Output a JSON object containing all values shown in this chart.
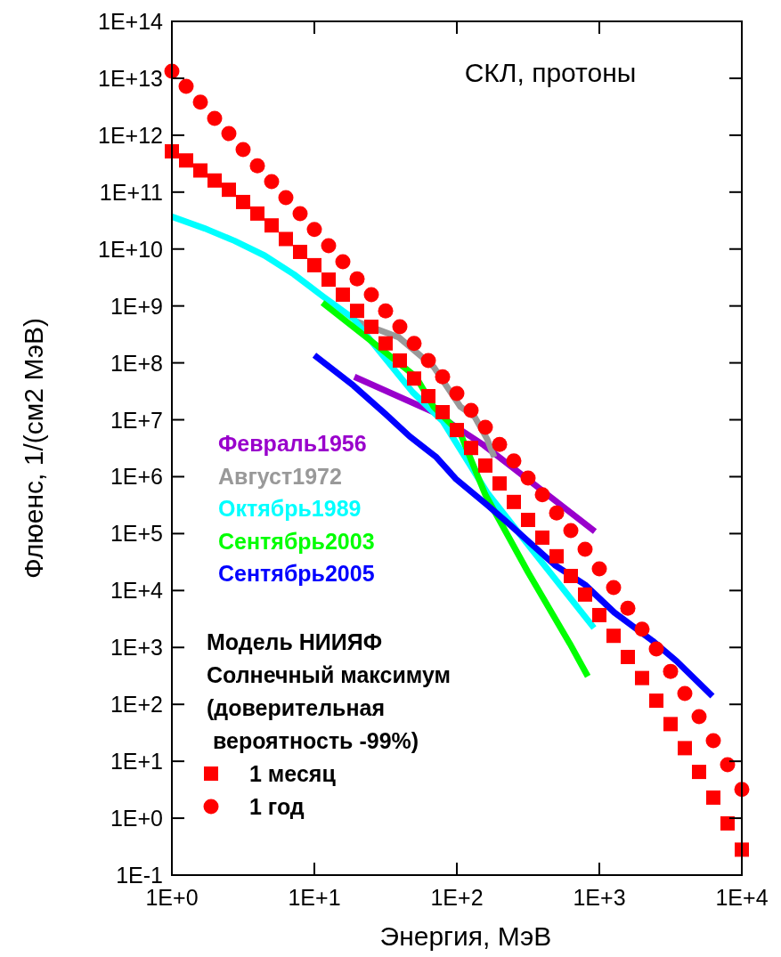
{
  "chart_data": {
    "type": "line",
    "xlabel": "Энергия, МэВ",
    "ylabel": "Флюенс, 1/(см2 МэВ)",
    "log": "xy",
    "xlim": [
      1,
      10000
    ],
    "ylim": [
      0.1,
      100000000000000.0
    ],
    "xticks": [
      {
        "value": 1,
        "label": "1E+0"
      },
      {
        "value": 10,
        "label": "1E+1"
      },
      {
        "value": 100,
        "label": "1E+2"
      },
      {
        "value": 1000,
        "label": "1E+3"
      },
      {
        "value": 10000,
        "label": "1E+4"
      }
    ],
    "yticks": [
      {
        "value": 0.1,
        "label": "1E-1"
      },
      {
        "value": 1,
        "label": "1E+0"
      },
      {
        "value": 10,
        "label": "1E+1"
      },
      {
        "value": 100,
        "label": "1E+2"
      },
      {
        "value": 1000,
        "label": "1E+3"
      },
      {
        "value": 10000,
        "label": "1E+4"
      },
      {
        "value": 100000,
        "label": "1E+5"
      },
      {
        "value": 1000000,
        "label": "1E+6"
      },
      {
        "value": 10000000,
        "label": "1E+7"
      },
      {
        "value": 100000000,
        "label": "1E+8"
      },
      {
        "value": 1000000000,
        "label": "1E+9"
      },
      {
        "value": 10000000000,
        "label": "1E+10"
      },
      {
        "value": 100000000000,
        "label": "1E+11"
      },
      {
        "value": 1000000000000,
        "label": "1E+12"
      },
      {
        "value": 10000000000000,
        "label": "1E+13"
      },
      {
        "value": 100000000000000,
        "label": "1E+14"
      }
    ],
    "grid": false,
    "legend": "left",
    "legend_title": "Модель НИИЯФ\nСолнечный максимум\n(доверительная\n вероятность -99%)",
    "annotations": [
      "СКЛ, протоны"
    ],
    "series": [
      {
        "name": "Февраль1956",
        "color": "#9900cc",
        "x": [
          19.1,
          68.8,
          154,
          931
        ],
        "values": [
          57000000.0,
          13600000.0,
          3600000.0,
          109000.0
        ]
      },
      {
        "name": "Август1972",
        "color": "#999999",
        "x": [
          19.1,
          39.2,
          68.8,
          106,
          133,
          163,
          183
        ],
        "values": [
          550000000.0,
          280000000.0,
          85000000.0,
          16900000.0,
          11400000.0,
          4600000.0,
          2200000.0
        ]
      },
      {
        "name": "Октябрь1989",
        "color": "#00ffff",
        "x": [
          1,
          1.7,
          2.74,
          4.47,
          7.18,
          11.5,
          18.8,
          26.2,
          48.7,
          79.4,
          163,
          335,
          917
        ],
        "values": [
          37000000000.0,
          23000000000.0,
          14000000000.0,
          7700000000.0,
          3600000000.0,
          1470000000.0,
          600000000.0,
          210000000.0,
          31000000.0,
          9500000.0,
          530000.0,
          53000.0,
          2200.0
        ]
      },
      {
        "name": "Сентябрь2003",
        "color": "#00ff00",
        "x": [
          11.4,
          23.7,
          51.6,
          68.8,
          106,
          158,
          316,
          622,
          830
        ],
        "values": [
          1140000000.0,
          270000000.0,
          57000000.0,
          16900000.0,
          5700000.0,
          490000.0,
          21000.0,
          1160,
          310
        ]
      },
      {
        "name": "Сентябрь2005",
        "color": "#0000ff",
        "x": [
          10,
          18.8,
          31.6,
          46.7,
          71.8,
          98.6,
          163,
          227,
          487,
          794,
          1277,
          2371,
          3499,
          6218
        ],
        "values": [
          136000000.0,
          40000000.0,
          12600000.0,
          5100000.0,
          2200000.0,
          910000.0,
          320000.0,
          156000.0,
          28000.0,
          12600.0,
          4100,
          1300,
          570,
          139
        ]
      },
      {
        "name": "1 месяц",
        "color": "#ff0000",
        "type": "scatter",
        "marker": "square",
        "x": [
          1,
          1.259,
          1.585,
          1.995,
          2.512,
          3.162,
          3.981,
          5.012,
          6.31,
          7.943,
          10,
          12.59,
          15.85,
          19.95,
          25.12,
          31.62,
          39.81,
          50.12,
          63.1,
          79.43,
          100,
          125.9,
          158.5,
          199.5,
          251.2,
          316.2,
          398.1,
          501.2,
          631,
          794.3,
          1000,
          1259,
          1585,
          1995,
          2512,
          3162,
          3981,
          5012,
          6310,
          7943,
          10000
        ],
        "values": [
          520000000000.0,
          360000000000.0,
          240000000000.0,
          160000000000.0,
          110000000000.0,
          67000000000.0,
          42000000000.0,
          26000000000.0,
          15000000000.0,
          8900000000.0,
          5200000000.0,
          2900000000.0,
          1580000000.0,
          820000000.0,
          430000000.0,
          220000000.0,
          110000000.0,
          53000000.0,
          26000000.0,
          13600000.0,
          6600000.0,
          3200000.0,
          1570000.0,
          760000.0,
          360000.0,
          174000.0,
          85000.0,
          40000.0,
          18000.0,
          8500,
          3700,
          1600,
          680,
          290,
          116,
          45,
          17,
          6.5,
          2.3,
          0.81,
          0.28
        ]
      },
      {
        "name": "1 год",
        "color": "#ff0000",
        "type": "scatter",
        "marker": "circle",
        "x": [
          1,
          1.259,
          1.585,
          1.995,
          2.512,
          3.162,
          3.981,
          5.012,
          6.31,
          7.943,
          10,
          12.59,
          15.85,
          19.95,
          25.12,
          31.62,
          39.81,
          50.12,
          63.1,
          79.43,
          100,
          125.9,
          158.5,
          199.5,
          251.2,
          316.2,
          398.1,
          501.2,
          631,
          794.3,
          1000,
          1259,
          1585,
          1995,
          2512,
          3162,
          3981,
          5012,
          6310,
          7943,
          10000
        ],
        "values": [
          13300000000000.0,
          7200000000000.0,
          3800000000000.0,
          1970000000000.0,
          1070000000000.0,
          560000000000.0,
          290000000000.0,
          153000000000.0,
          80000000000.0,
          42000000000.0,
          22000000000.0,
          11400000000.0,
          6000000000.0,
          3000000000.0,
          1580000000.0,
          820000000.0,
          430000000.0,
          220000000.0,
          110000000.0,
          57000000.0,
          29000000.0,
          14600000.0,
          7400000.0,
          3700000.0,
          1900000.0,
          950000.0,
          480000.0,
          230000.0,
          113000.0,
          53000.0,
          24000.0,
          11300.0,
          4900,
          2100,
          940,
          380,
          155,
          61,
          23,
          8.7,
          3.2
        ]
      }
    ]
  }
}
